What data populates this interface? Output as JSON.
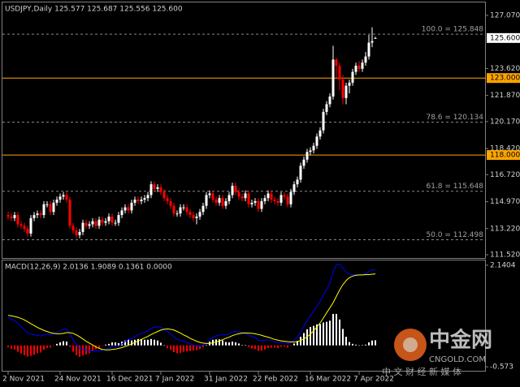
{
  "chart_data": [
    {
      "type": "candlestick",
      "title": "USDJPY,Daily  125.577 125.687 125.556 125.600",
      "categories": [
        "2 Nov 2021",
        null,
        null,
        null,
        null,
        null,
        null,
        null,
        null,
        null,
        null,
        null,
        null,
        null,
        null,
        null,
        "24 Nov 2021",
        null,
        null,
        null,
        null,
        null,
        null,
        null,
        null,
        null,
        null,
        null,
        null,
        null,
        null,
        null,
        "16 Dec 2021",
        null,
        null,
        null,
        null,
        null,
        null,
        null,
        null,
        null,
        null,
        null,
        null,
        null,
        null,
        "7 Jan 2022",
        null,
        null,
        null,
        null,
        null,
        null,
        null,
        null,
        null,
        null,
        null,
        null,
        null,
        null,
        "31 Jan 2022",
        null,
        null,
        null,
        null,
        null,
        null,
        null,
        null,
        null,
        null,
        null,
        null,
        null,
        null,
        "22 Feb 2022",
        null,
        null,
        null,
        null,
        null,
        null,
        null,
        null,
        null,
        null,
        null,
        null,
        null,
        null,
        null,
        "16 Mar 2022",
        null,
        null,
        null,
        null,
        null,
        null,
        null,
        null,
        null,
        null,
        null,
        null,
        null,
        null,
        "7 Apr 2022",
        null,
        null,
        null,
        null,
        null
      ],
      "open": [
        114.1,
        114.0,
        113.9,
        114.1,
        113.5,
        113.4,
        113.2,
        112.9,
        113.9,
        114.1,
        114.2,
        114.1,
        114.8,
        114.8,
        114.3,
        114.9,
        115.1,
        115.3,
        115.4,
        115.1,
        113.4,
        113.1,
        112.8,
        113.0,
        113.6,
        113.4,
        113.5,
        113.7,
        113.4,
        113.8,
        113.6,
        113.7,
        114.0,
        113.6,
        113.6,
        114.1,
        114.4,
        114.6,
        114.4,
        114.9,
        115.1,
        115.0,
        115.1,
        115.2,
        115.4,
        116.1,
        115.8,
        115.9,
        115.6,
        115.2,
        115.0,
        114.7,
        114.2,
        114.2,
        114.6,
        114.6,
        114.3,
        114.1,
        113.9,
        114.0,
        114.3,
        114.7,
        115.4,
        115.5,
        115.1,
        114.9,
        115.2,
        114.7,
        115.0,
        115.4,
        116.0,
        115.6,
        115.3,
        115.2,
        115.5,
        114.8,
        114.9,
        115.0,
        114.5,
        115.0,
        115.2,
        115.5,
        115.1,
        115.0,
        114.9,
        115.4,
        115.3,
        114.8,
        115.6,
        116.1,
        116.4,
        117.3,
        117.7,
        118.2,
        118.3,
        118.6,
        119.2,
        119.6,
        120.8,
        121.3,
        121.8,
        124.2,
        123.8,
        122.9,
        121.7,
        122.5,
        122.7,
        123.4,
        123.8,
        123.6,
        124.0,
        124.4,
        125.3,
        125.577
      ],
      "high": [
        114.3,
        114.2,
        114.3,
        114.3,
        113.7,
        113.6,
        113.4,
        114.1,
        114.3,
        114.4,
        114.4,
        115.0,
        115.0,
        115.0,
        115.1,
        115.3,
        115.5,
        115.6,
        115.6,
        115.3,
        113.6,
        113.3,
        113.2,
        113.8,
        113.8,
        113.7,
        113.9,
        113.9,
        114.0,
        114.0,
        113.9,
        114.2,
        114.2,
        113.8,
        114.3,
        114.6,
        114.8,
        114.8,
        115.1,
        115.3,
        115.3,
        115.3,
        115.4,
        115.6,
        116.3,
        116.3,
        116.1,
        116.1,
        115.8,
        115.4,
        115.2,
        114.9,
        114.4,
        114.8,
        114.8,
        114.8,
        114.5,
        114.3,
        114.2,
        114.5,
        114.9,
        115.6,
        115.7,
        115.7,
        115.3,
        115.4,
        115.4,
        115.2,
        115.6,
        116.2,
        116.2,
        115.8,
        115.5,
        115.7,
        115.7,
        115.1,
        115.2,
        115.2,
        115.2,
        115.4,
        115.7,
        115.7,
        115.3,
        115.2,
        115.6,
        115.6,
        115.5,
        115.8,
        116.3,
        116.6,
        117.5,
        117.9,
        118.4,
        118.5,
        118.8,
        119.4,
        119.8,
        121.0,
        121.5,
        122.0,
        125.1,
        124.3,
        124.0,
        123.2,
        122.7,
        122.9,
        123.6,
        124.0,
        124.1,
        124.2,
        124.7,
        125.8,
        126.3,
        125.687
      ],
      "low": [
        113.8,
        113.7,
        113.7,
        113.3,
        113.2,
        113.0,
        112.7,
        112.7,
        113.7,
        113.9,
        113.9,
        113.9,
        114.6,
        114.1,
        114.1,
        114.7,
        114.9,
        115.1,
        114.9,
        113.2,
        112.9,
        112.6,
        112.6,
        112.8,
        113.2,
        113.2,
        113.3,
        113.2,
        113.2,
        113.4,
        113.4,
        113.5,
        113.4,
        113.4,
        113.4,
        113.9,
        114.2,
        114.2,
        114.2,
        114.7,
        114.8,
        114.8,
        114.9,
        115.0,
        115.2,
        115.6,
        115.6,
        115.4,
        115.0,
        114.8,
        114.5,
        114.0,
        114.0,
        114.0,
        114.4,
        114.1,
        113.9,
        113.7,
        113.5,
        113.8,
        114.1,
        114.5,
        115.2,
        114.9,
        114.7,
        114.7,
        114.5,
        114.5,
        114.8,
        115.2,
        115.4,
        115.1,
        115.0,
        115.0,
        114.6,
        114.6,
        114.7,
        114.3,
        114.3,
        114.8,
        115.0,
        114.9,
        114.8,
        114.7,
        114.7,
        115.1,
        114.6,
        114.6,
        115.4,
        115.9,
        116.2,
        117.1,
        117.5,
        118.0,
        118.1,
        118.4,
        119.0,
        119.4,
        120.6,
        121.1,
        121.6,
        123.0,
        122.2,
        121.3,
        121.3,
        122.0,
        122.5,
        123.2,
        123.4,
        123.4,
        123.8,
        124.2,
        125.0,
        125.556
      ],
      "close": [
        114.0,
        113.9,
        114.1,
        113.5,
        113.4,
        113.2,
        112.9,
        113.9,
        114.1,
        114.2,
        114.1,
        114.8,
        114.8,
        114.3,
        114.9,
        115.1,
        115.3,
        115.4,
        115.1,
        113.4,
        113.1,
        112.8,
        113.0,
        113.6,
        113.4,
        113.5,
        113.7,
        113.4,
        113.8,
        113.6,
        113.7,
        114.0,
        113.6,
        113.6,
        114.1,
        114.4,
        114.6,
        114.4,
        114.9,
        115.1,
        115.0,
        115.1,
        115.2,
        115.4,
        116.1,
        115.8,
        115.9,
        115.6,
        115.2,
        115.0,
        114.7,
        114.2,
        114.2,
        114.6,
        114.6,
        114.3,
        114.1,
        113.9,
        114.0,
        114.3,
        114.7,
        115.4,
        115.5,
        115.1,
        114.9,
        115.2,
        114.7,
        115.0,
        115.4,
        116.0,
        115.6,
        115.3,
        115.2,
        115.5,
        114.8,
        114.9,
        115.0,
        114.5,
        115.0,
        115.2,
        115.5,
        115.1,
        115.0,
        114.9,
        115.4,
        115.3,
        114.8,
        115.6,
        116.1,
        116.4,
        117.3,
        117.7,
        118.2,
        118.3,
        118.6,
        119.2,
        119.6,
        120.8,
        121.3,
        121.8,
        124.2,
        123.8,
        122.9,
        121.7,
        122.5,
        122.7,
        123.4,
        123.8,
        123.6,
        124.0,
        124.4,
        125.3,
        125.4,
        125.6
      ],
      "up_color": "#ffffff",
      "down_color": "#ff0000",
      "ylim": [
        111.31,
        128.07
      ],
      "yticks": [
        {
          "value": 127.07,
          "label": "127.070"
        },
        {
          "value": 123.62,
          "label": "123.620"
        },
        {
          "value": 121.87,
          "label": "121.870"
        },
        {
          "value": 120.17,
          "label": "120.170"
        },
        {
          "value": 118.42,
          "label": "118.420"
        },
        {
          "value": 116.72,
          "label": "116.720"
        },
        {
          "value": 114.97,
          "label": "114.970"
        },
        {
          "value": 113.22,
          "label": "113.220"
        },
        {
          "value": 111.52,
          "label": "111.520"
        }
      ],
      "last_price": {
        "value": 125.6,
        "label": "125.600"
      },
      "hlines": [
        {
          "value": 123.0,
          "label": "123.000",
          "color": "#ffa500"
        },
        {
          "value": 118.0,
          "label": "118.000",
          "color": "#ffa500"
        }
      ],
      "fib_levels": [
        {
          "value": 125.848,
          "label": "100.0 = 125.848"
        },
        {
          "value": 120.134,
          "label": "78.6 = 120.134"
        },
        {
          "value": 115.648,
          "label": "61.8 = 115.648"
        },
        {
          "value": 112.498,
          "label": "50.0 = 112.498"
        }
      ]
    },
    {
      "type": "macd",
      "title": "MACD(12,26,9) 2.0136 1.9089 0.1361 0.0000",
      "ylim": [
        -0.7,
        2.29
      ],
      "yticks": [
        {
          "value": 2.1404,
          "label": "2.1404"
        },
        -0.573
      ],
      "macd": {
        "color": "#0000ff",
        "values": [
          0.75,
          0.7,
          0.66,
          0.58,
          0.5,
          0.42,
          0.33,
          0.3,
          0.28,
          0.27,
          0.25,
          0.28,
          0.3,
          0.28,
          0.31,
          0.35,
          0.39,
          0.43,
          0.44,
          0.3,
          0.15,
          0.02,
          -0.08,
          -0.1,
          -0.13,
          -0.15,
          -0.15,
          -0.14,
          -0.15,
          -0.12,
          -0.1,
          -0.08,
          -0.03,
          -0.02,
          -0.02,
          0.04,
          0.1,
          0.16,
          0.17,
          0.23,
          0.29,
          0.32,
          0.35,
          0.39,
          0.46,
          0.48,
          0.5,
          0.48,
          0.43,
          0.37,
          0.31,
          0.23,
          0.16,
          0.13,
          0.11,
          0.08,
          0.04,
          0.01,
          -0.02,
          -0.02,
          0.01,
          0.06,
          0.15,
          0.22,
          0.25,
          0.28,
          0.28,
          0.28,
          0.3,
          0.36,
          0.37,
          0.36,
          0.34,
          0.34,
          0.28,
          0.24,
          0.21,
          0.14,
          0.13,
          0.13,
          0.15,
          0.13,
          0.1,
          0.07,
          0.08,
          0.08,
          0.04,
          0.08,
          0.14,
          0.22,
          0.36,
          0.5,
          0.66,
          0.79,
          0.91,
          1.05,
          1.17,
          1.34,
          1.5,
          1.66,
          1.98,
          2.15,
          2.17,
          2.06,
          1.96,
          1.9,
          1.89,
          1.89,
          1.88,
          1.89,
          1.91,
          1.97,
          2.03,
          2.0136
        ]
      },
      "signal": {
        "color": "#ffff00",
        "values": [
          0.8,
          0.79,
          0.77,
          0.75,
          0.72,
          0.68,
          0.63,
          0.58,
          0.53,
          0.48,
          0.44,
          0.4,
          0.37,
          0.34,
          0.32,
          0.31,
          0.31,
          0.32,
          0.34,
          0.34,
          0.32,
          0.28,
          0.23,
          0.17,
          0.11,
          0.06,
          0.01,
          -0.04,
          -0.08,
          -0.11,
          -0.12,
          -0.12,
          -0.11,
          -0.1,
          -0.08,
          -0.06,
          -0.03,
          0.0,
          0.04,
          0.08,
          0.12,
          0.16,
          0.2,
          0.24,
          0.29,
          0.33,
          0.37,
          0.41,
          0.43,
          0.44,
          0.43,
          0.41,
          0.37,
          0.33,
          0.28,
          0.24,
          0.19,
          0.15,
          0.11,
          0.08,
          0.06,
          0.05,
          0.05,
          0.07,
          0.09,
          0.12,
          0.15,
          0.19,
          0.22,
          0.26,
          0.29,
          0.31,
          0.33,
          0.33,
          0.33,
          0.32,
          0.31,
          0.29,
          0.27,
          0.24,
          0.22,
          0.19,
          0.16,
          0.14,
          0.12,
          0.11,
          0.1,
          0.09,
          0.09,
          0.1,
          0.13,
          0.17,
          0.23,
          0.3,
          0.39,
          0.49,
          0.6,
          0.73,
          0.87,
          1.0,
          1.14,
          1.31,
          1.48,
          1.62,
          1.73,
          1.81,
          1.85,
          1.87,
          1.88,
          1.88,
          1.89,
          1.89,
          1.9,
          1.9089
        ]
      },
      "histogram": {
        "positive_color": "#ffffff",
        "negative_color": "#ff0000",
        "values": [
          -0.05,
          -0.09,
          -0.11,
          -0.17,
          -0.22,
          -0.26,
          -0.3,
          -0.28,
          -0.25,
          -0.21,
          -0.19,
          -0.12,
          -0.07,
          -0.06,
          -0.01,
          0.04,
          0.08,
          0.11,
          0.1,
          -0.04,
          -0.17,
          -0.26,
          -0.31,
          -0.27,
          -0.24,
          -0.21,
          -0.16,
          -0.1,
          -0.07,
          -0.01,
          0.02,
          0.04,
          0.08,
          0.08,
          0.06,
          0.1,
          0.13,
          0.16,
          0.13,
          0.15,
          0.17,
          0.16,
          0.15,
          0.15,
          0.17,
          0.15,
          0.13,
          0.07,
          0.0,
          -0.07,
          -0.12,
          -0.18,
          -0.21,
          -0.2,
          -0.17,
          -0.16,
          -0.15,
          -0.14,
          -0.13,
          -0.1,
          -0.05,
          0.01,
          0.1,
          0.15,
          0.16,
          0.16,
          0.13,
          0.09,
          0.08,
          0.1,
          0.08,
          0.05,
          0.01,
          0.01,
          -0.05,
          -0.08,
          -0.1,
          -0.15,
          -0.14,
          -0.11,
          -0.07,
          -0.06,
          -0.06,
          -0.07,
          -0.04,
          -0.03,
          -0.06,
          -0.01,
          0.05,
          0.12,
          0.23,
          0.33,
          0.43,
          0.49,
          0.52,
          0.56,
          0.57,
          0.61,
          0.63,
          0.66,
          0.84,
          0.84,
          0.69,
          0.44,
          0.23,
          0.09,
          0.04,
          0.02,
          0.0,
          0.01,
          0.02,
          0.08,
          0.13,
          0.1361
        ]
      }
    }
  ],
  "watermark": {
    "title": "中金网",
    "site": "CNGOLD.COM",
    "slogan": "中 文 财 经 新 媒 体"
  }
}
